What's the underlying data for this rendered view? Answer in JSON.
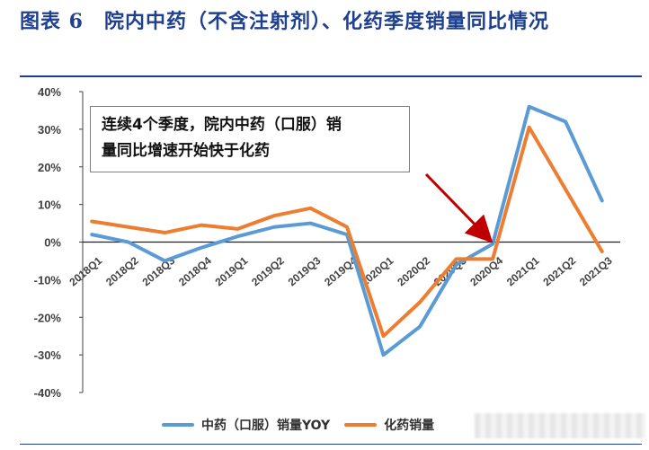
{
  "figure": {
    "title": "图表 6　院内中药（不含注射剂）、化药季度销量同比情况"
  },
  "annotation": {
    "line1": "连续4个季度，院内中药（口服）销",
    "line2": "量同比增速开始快于化药"
  },
  "colors": {
    "title": "#1f3f8f",
    "series_1": "#5b9bd5",
    "series_2": "#ed7d31",
    "arrow": "#c00000"
  },
  "chart_data": {
    "type": "line",
    "categories": [
      "2018Q1",
      "2018Q2",
      "2018Q3",
      "2018Q4",
      "2019Q1",
      "2019Q2",
      "2019Q3",
      "2019Q4",
      "2020Q1",
      "2020Q2",
      "2020Q3",
      "2020Q4",
      "2021Q1",
      "2021Q2",
      "2021Q3"
    ],
    "series": [
      {
        "name": "中药（口服）销量YOY",
        "values": [
          2,
          0,
          -5,
          -1.5,
          1.5,
          4,
          5,
          2,
          -30,
          -22.5,
          -6,
          -0.5,
          36,
          32,
          11
        ]
      },
      {
        "name": "化药销量",
        "values": [
          5.5,
          4,
          2.5,
          4.5,
          3.5,
          7,
          9,
          4,
          -25,
          -16,
          -4.5,
          -4.5,
          30.5,
          14,
          -2.5
        ]
      }
    ],
    "yticks": [
      "40%",
      "30%",
      "20%",
      "10%",
      "0%",
      "-10%",
      "-20%",
      "-30%",
      "-40%"
    ],
    "ylim": [
      -40,
      40
    ],
    "legend_position": "bottom",
    "grid": false
  }
}
